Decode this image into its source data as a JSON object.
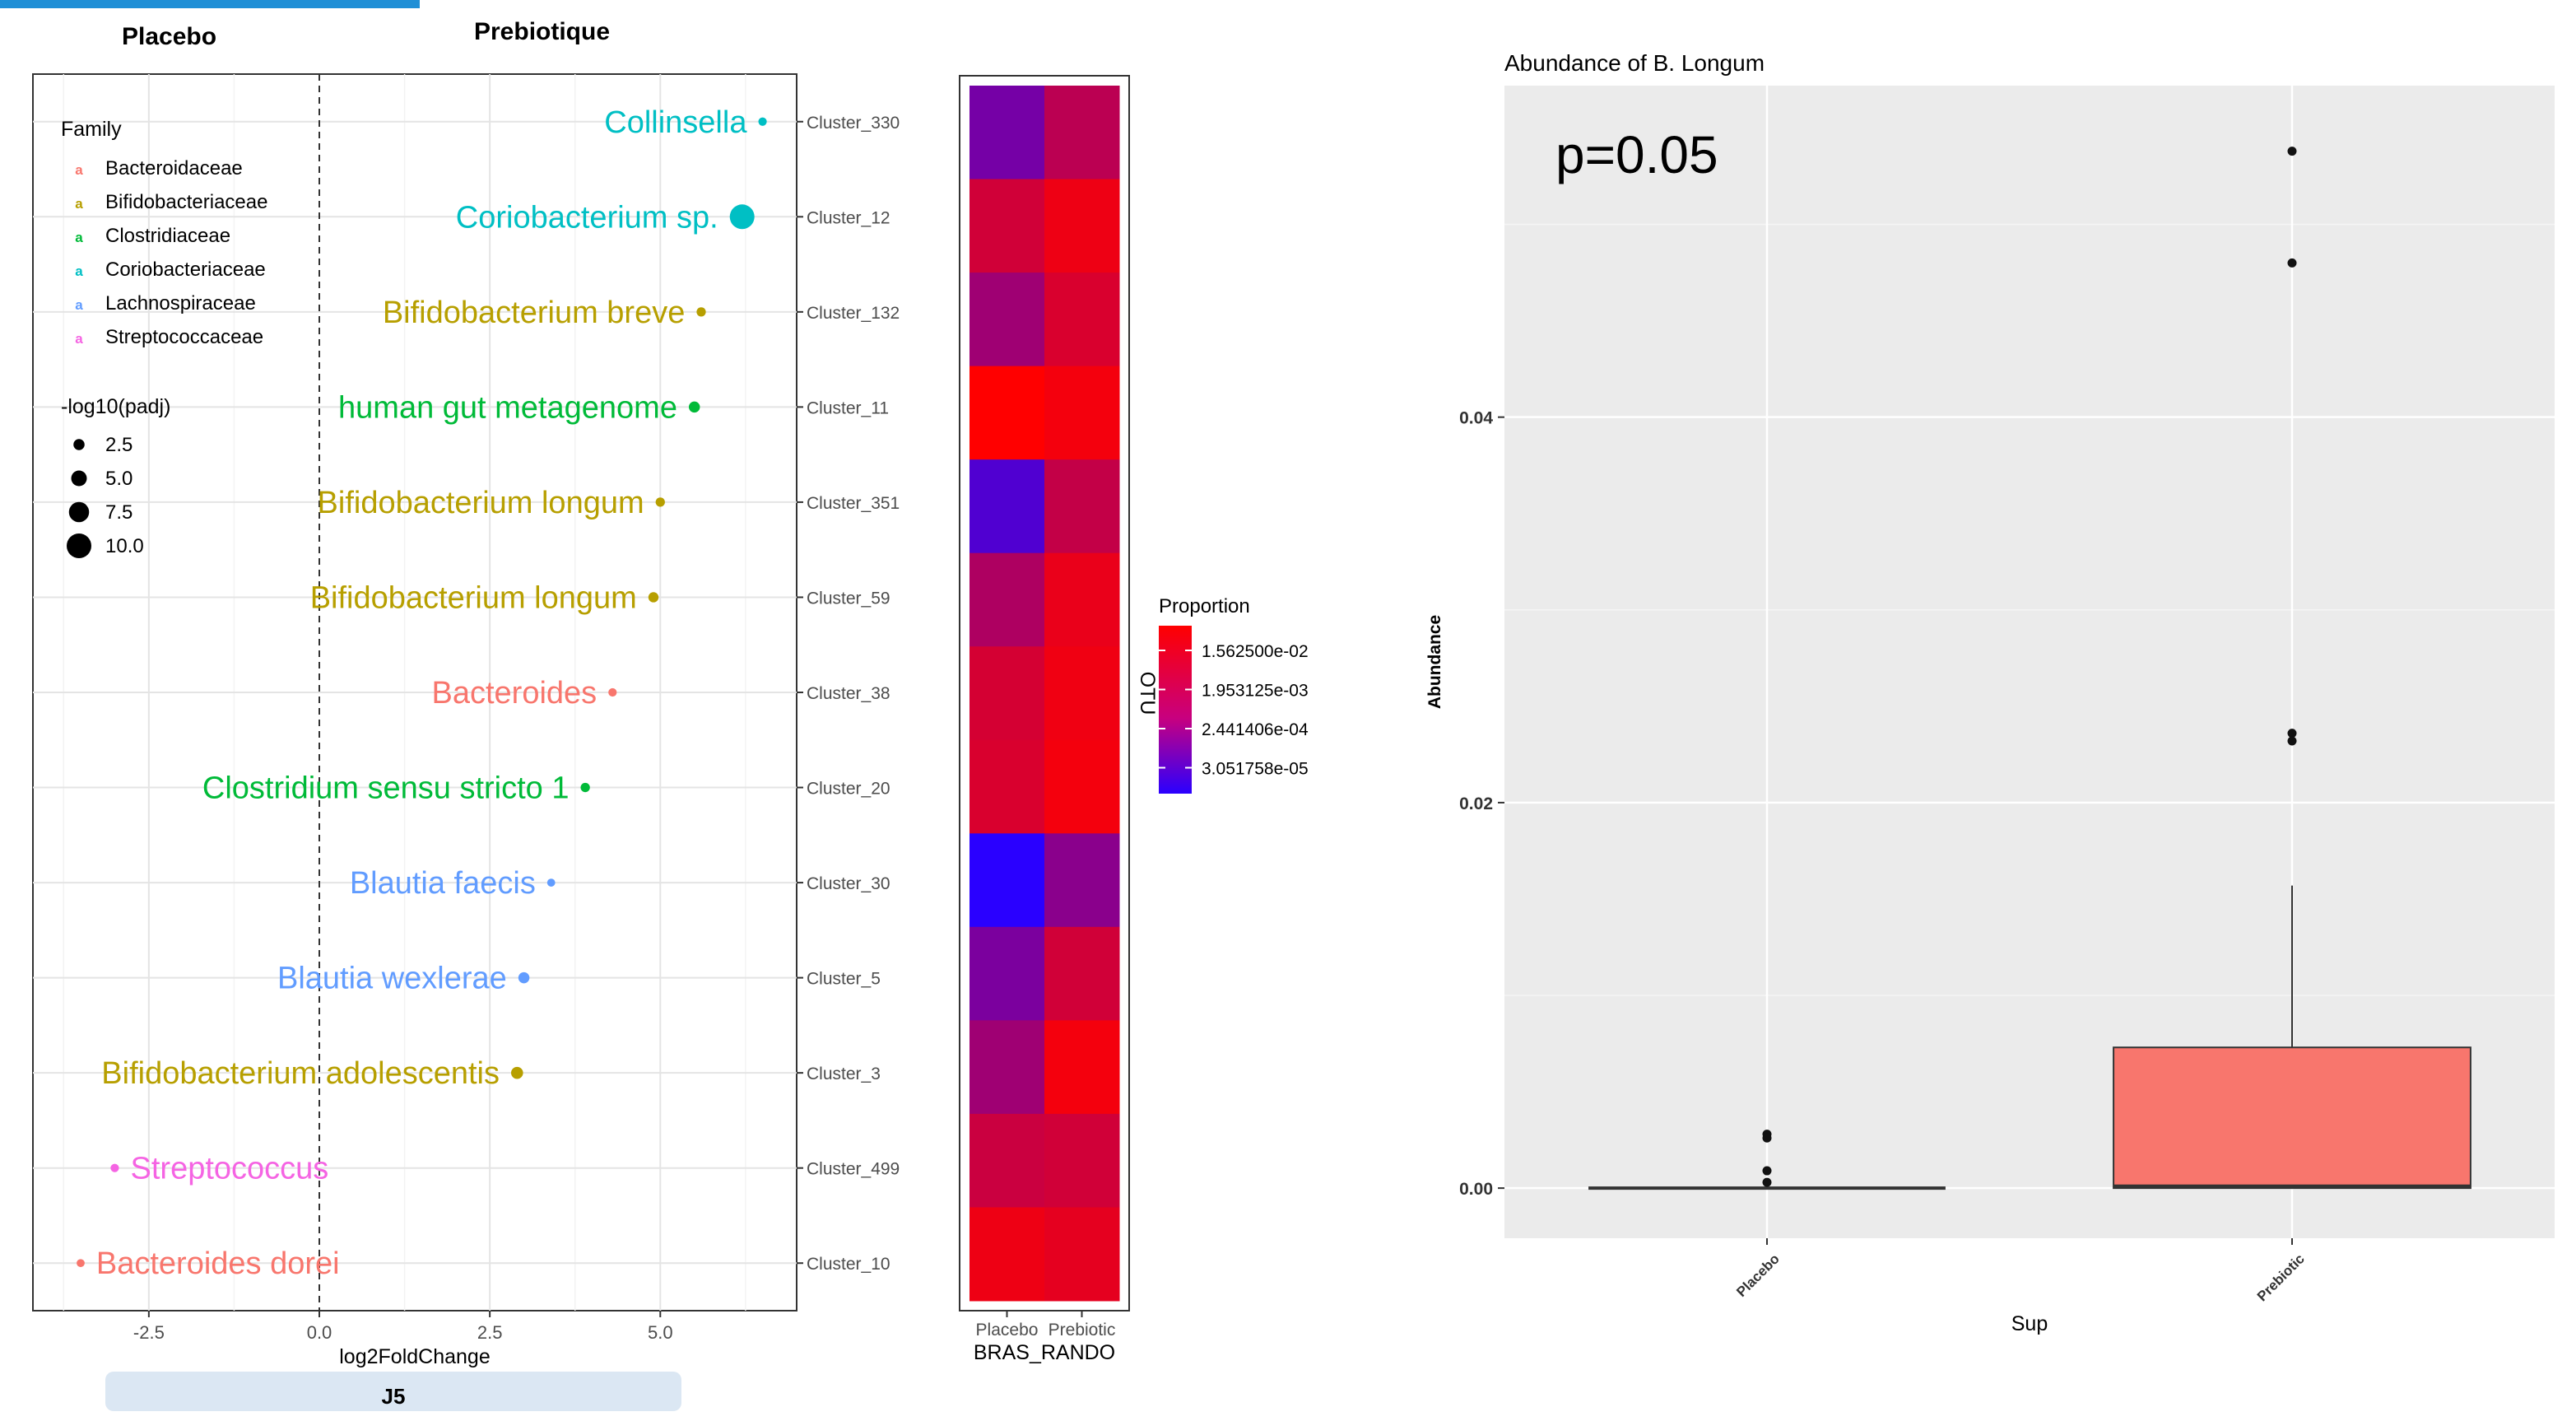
{
  "headers": {
    "left": "Placebo",
    "right": "Prebiotique"
  },
  "day_label": "J5",
  "colors": {
    "Bacteroidaceae": "#f8766d",
    "Bifidobacteriaceae": "#b79f00",
    "Clostridiaceae": "#00ba38",
    "Coriobacteriaceae": "#00bfc4",
    "Lachnospiraceae": "#619cff",
    "Streptococcaceae": "#f564e3",
    "box_fill": "#f8766d",
    "panel_bg": "#ebebeb"
  },
  "chart_data": [
    {
      "type": "scatter",
      "xlabel": "log2FoldChange",
      "x_ticks": [
        "-2.5",
        "0.0",
        "2.5",
        "5.0"
      ],
      "xlim": [
        -4.2,
        7.0
      ],
      "legend": {
        "family_title": "Family",
        "families": [
          "Bacteroidaceae",
          "Bifidobacteriaceae",
          "Clostridiaceae",
          "Coriobacteriaceae",
          "Lachnospiraceae",
          "Streptococcaceae"
        ],
        "size_title": "-log10(padj)",
        "sizes": [
          "2.5",
          "5.0",
          "7.5",
          "10.0"
        ],
        "size_values": [
          2.5,
          5.0,
          7.5,
          10.0
        ]
      },
      "points": [
        {
          "otu": "Cluster_330",
          "label": "Collinsella",
          "family": "Coriobacteriaceae",
          "x": 6.5,
          "padj": 1.0
        },
        {
          "otu": "Cluster_12",
          "label": "Coriobacterium sp.",
          "family": "Coriobacteriaceae",
          "x": 6.2,
          "padj": 10.0
        },
        {
          "otu": "Cluster_132",
          "label": "Bifidobacterium breve",
          "family": "Bifidobacteriaceae",
          "x": 5.6,
          "padj": 1.5
        },
        {
          "otu": "Cluster_11",
          "label": "human gut metagenome",
          "family": "Clostridiaceae",
          "x": 5.5,
          "padj": 2.5
        },
        {
          "otu": "Cluster_351",
          "label": "Bifidobacterium longum",
          "family": "Bifidobacteriaceae",
          "x": 5.0,
          "padj": 1.5
        },
        {
          "otu": "Cluster_59",
          "label": "Bifidobacterium longum",
          "family": "Bifidobacteriaceae",
          "x": 4.9,
          "padj": 2.0
        },
        {
          "otu": "Cluster_38",
          "label": "Bacteroides",
          "family": "Bacteroidaceae",
          "x": 4.3,
          "padj": 1.0
        },
        {
          "otu": "Cluster_20",
          "label": "Clostridium sensu stricto 1",
          "family": "Clostridiaceae",
          "x": 3.9,
          "padj": 1.5
        },
        {
          "otu": "Cluster_30",
          "label": "Blautia faecis",
          "family": "Lachnospiraceae",
          "x": 3.4,
          "padj": 0.8
        },
        {
          "otu": "Cluster_5",
          "label": "Blautia wexlerae",
          "family": "Lachnospiraceae",
          "x": 3.0,
          "padj": 2.5
        },
        {
          "otu": "Cluster_3",
          "label": "Bifidobacterium adolescentis",
          "family": "Bifidobacteriaceae",
          "x": 2.9,
          "padj": 3.0
        },
        {
          "otu": "Cluster_499",
          "label": "Streptococcus",
          "family": "Streptococcaceae",
          "x": -3.0,
          "padj": 1.0
        },
        {
          "otu": "Cluster_10",
          "label": "Bacteroides dorei",
          "family": "Bacteroidaceae",
          "x": -3.5,
          "padj": 0.8
        }
      ]
    },
    {
      "type": "heatmap",
      "xlabel": "BRAS_RANDO",
      "ylabel": "OTU",
      "columns": [
        "Placebo",
        "Prebiotic"
      ],
      "legend_title": "Proportion",
      "legend_labels": [
        "1.562500e-02",
        "1.953125e-03",
        "2.441406e-04",
        "3.051758e-05"
      ],
      "color_low": "#2a00ff",
      "color_high": "#ff0000",
      "values": [
        [
          0.35,
          0.68
        ],
        [
          0.78,
          0.92
        ],
        [
          0.55,
          0.82
        ],
        [
          1.0,
          0.95
        ],
        [
          0.18,
          0.72
        ],
        [
          0.62,
          0.9
        ],
        [
          0.8,
          0.93
        ],
        [
          0.82,
          0.95
        ],
        [
          0.0,
          0.45
        ],
        [
          0.38,
          0.78
        ],
        [
          0.55,
          0.95
        ],
        [
          0.75,
          0.78
        ],
        [
          0.92,
          0.88
        ]
      ]
    },
    {
      "type": "box",
      "title": "Abundance of B. Longum",
      "annotation": "p=0.05",
      "xlabel": "Sup",
      "ylabel": "Abundance",
      "categories": [
        "Placebo",
        "Prebiotic"
      ],
      "y_ticks": [
        "0.00",
        "0.02",
        "0.04"
      ],
      "ylim": [
        -0.0026,
        0.0572
      ],
      "boxes": [
        {
          "min": 0,
          "q1": 0,
          "median": 0,
          "q3": 0,
          "max": 0,
          "outliers": [
            0.0028,
            0.0026,
            0.0009,
            0.0003
          ]
        },
        {
          "min": 0,
          "q1": 0,
          "median": 0.0001,
          "q3": 0.0073,
          "max": 0.0157,
          "outliers": [
            0.0538,
            0.048,
            0.0236,
            0.0232
          ]
        }
      ]
    }
  ]
}
